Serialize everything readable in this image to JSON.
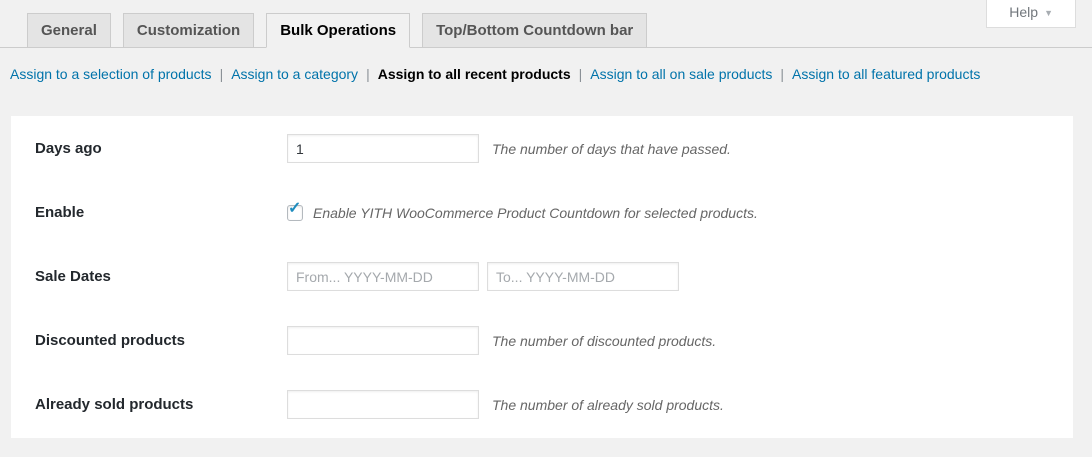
{
  "help": {
    "label": "Help",
    "arrow": "▼"
  },
  "tabs": [
    {
      "label": "General",
      "active": false
    },
    {
      "label": "Customization",
      "active": false
    },
    {
      "label": "Bulk Operations",
      "active": true
    },
    {
      "label": "Top/Bottom Countdown bar",
      "active": false
    }
  ],
  "subnav": {
    "separator": "|",
    "items": [
      {
        "label": "Assign to a selection of products",
        "active": false
      },
      {
        "label": "Assign to a category",
        "active": false
      },
      {
        "label": "Assign to all recent products",
        "active": true
      },
      {
        "label": "Assign to all on sale products",
        "active": false
      },
      {
        "label": "Assign to all featured products",
        "active": false
      }
    ]
  },
  "form": {
    "rows": [
      {
        "label": "Days ago",
        "type": "text",
        "value": "1",
        "description": "The number of days that have passed."
      },
      {
        "label": "Enable",
        "type": "checkbox",
        "checked": true,
        "description": "Enable YITH WooCommerce Product Countdown for selected products."
      },
      {
        "label": "Sale Dates",
        "type": "dates",
        "from_placeholder": "From... YYYY-MM-DD",
        "to_placeholder": "To... YYYY-MM-DD"
      },
      {
        "label": "Discounted products",
        "type": "text",
        "value": "",
        "description": "The number of discounted products."
      },
      {
        "label": "Already sold products",
        "type": "text",
        "value": "",
        "description": "The number of already sold products."
      }
    ]
  },
  "icons": {
    "checkmark": "✓"
  },
  "colors": {
    "page_background": "#f1f1f1",
    "link_blue": "#0073aa",
    "checkbox_check_blue": "#1e8cbe",
    "inactive_tab_background": "#e4e4e4"
  }
}
